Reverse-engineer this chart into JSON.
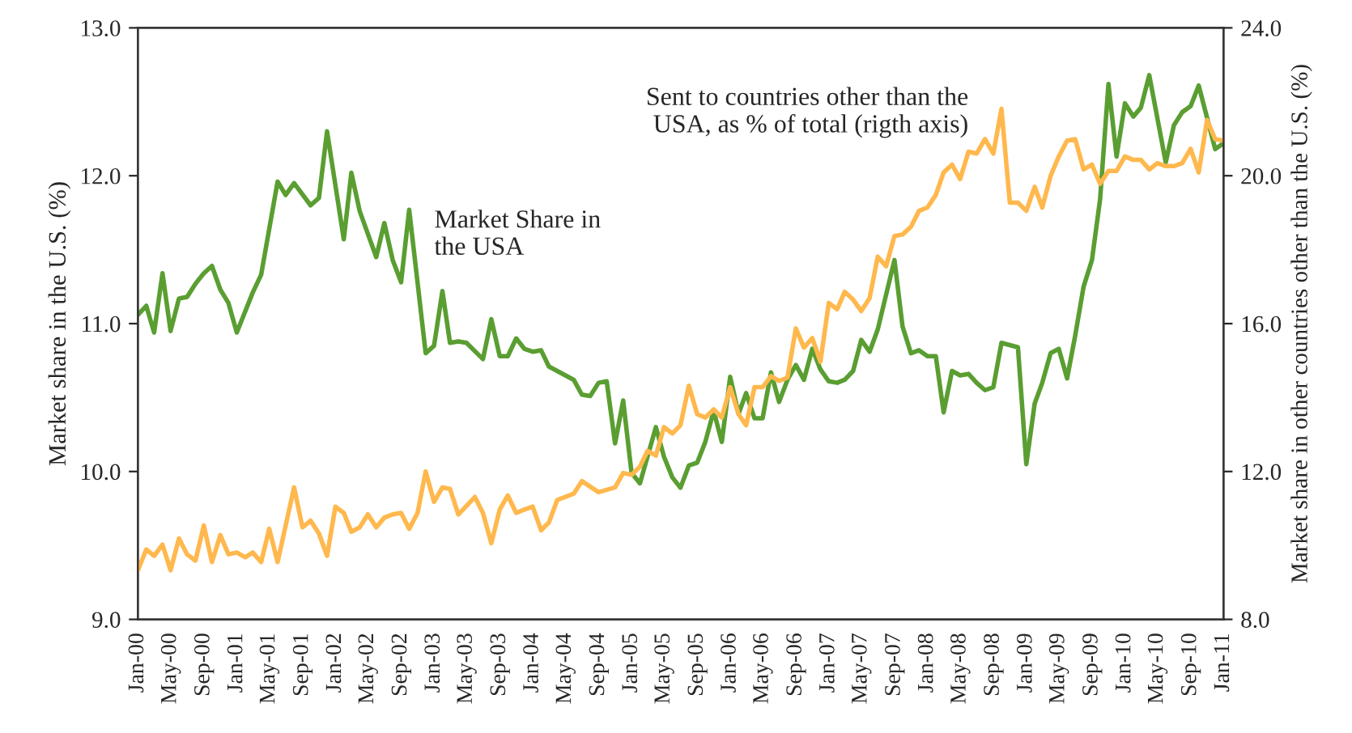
{
  "chart_data": {
    "type": "line",
    "ylabel": "Market share in the U.S. (%)",
    "y2label": "Market share in other countries other than the U.S. (%)",
    "annotations": [
      "Market Share in\nthe USA",
      "Sent to countries other than the\nUSA, as % of total (rigth axis)"
    ],
    "xlim": [
      "2000-01",
      "2011-01"
    ],
    "xticks": [
      {
        "value": "2000-01",
        "label": "Jan-00"
      },
      {
        "value": "2000-05",
        "label": "May-00"
      },
      {
        "value": "2000-09",
        "label": "Sep-00"
      },
      {
        "value": "2001-01",
        "label": "Jan-01"
      },
      {
        "value": "2001-05",
        "label": "May-01"
      },
      {
        "value": "2001-09",
        "label": "Sep-01"
      },
      {
        "value": "2002-01",
        "label": "Jan-02"
      },
      {
        "value": "2002-05",
        "label": "May-02"
      },
      {
        "value": "2002-09",
        "label": "Sep-02"
      },
      {
        "value": "2003-01",
        "label": "Jan-03"
      },
      {
        "value": "2003-05",
        "label": "May-03"
      },
      {
        "value": "2003-09",
        "label": "Sep-03"
      },
      {
        "value": "2004-01",
        "label": "Jan-04"
      },
      {
        "value": "2004-05",
        "label": "May-04"
      },
      {
        "value": "2004-09",
        "label": "Sep-04"
      },
      {
        "value": "2005-01",
        "label": "Jan-05"
      },
      {
        "value": "2005-05",
        "label": "May-05"
      },
      {
        "value": "2005-09",
        "label": "Sep-05"
      },
      {
        "value": "2006-01",
        "label": "Jan-06"
      },
      {
        "value": "2006-05",
        "label": "May-06"
      },
      {
        "value": "2006-09",
        "label": "Sep-06"
      },
      {
        "value": "2007-01",
        "label": "Jan-07"
      },
      {
        "value": "2007-05",
        "label": "May-07"
      },
      {
        "value": "2007-09",
        "label": "Sep-07"
      },
      {
        "value": "2008-01",
        "label": "Jan-08"
      },
      {
        "value": "2008-05",
        "label": "May-08"
      },
      {
        "value": "2008-09",
        "label": "Sep-08"
      },
      {
        "value": "2009-01",
        "label": "Jan-09"
      },
      {
        "value": "2009-05",
        "label": "May-09"
      },
      {
        "value": "2009-09",
        "label": "Sep-09"
      },
      {
        "value": "2010-01",
        "label": "Jan-10"
      },
      {
        "value": "2010-05",
        "label": "May-10"
      },
      {
        "value": "2010-09",
        "label": "Sep-10"
      },
      {
        "value": "2011-01",
        "label": "Jan-11"
      }
    ],
    "ylim": [
      9,
      13
    ],
    "yticks": [
      {
        "value": 9,
        "label": "9.0"
      },
      {
        "value": 10,
        "label": "10.0"
      },
      {
        "value": 11,
        "label": "11.0"
      },
      {
        "value": 12,
        "label": "12.0"
      },
      {
        "value": 13,
        "label": "13.0"
      }
    ],
    "y2lim": [
      8,
      24
    ],
    "y2ticks": [
      {
        "value": 8,
        "label": "8.0"
      },
      {
        "value": 12,
        "label": "12.0"
      },
      {
        "value": 16,
        "label": "16.0"
      },
      {
        "value": 20,
        "label": "20.0"
      },
      {
        "value": 24,
        "label": "24.0"
      }
    ],
    "grid": false,
    "legend": false,
    "series": [
      {
        "color": "#5a9e32",
        "x": [
          "2000-01",
          "2000-02",
          "2000-03",
          "2000-04",
          "2000-05",
          "2000-06",
          "2000-07",
          "2000-08",
          "2000-09",
          "2000-10",
          "2000-11",
          "2000-12",
          "2001-01",
          "2001-03",
          "2001-04",
          "2001-06",
          "2001-07",
          "2001-08",
          "2001-10",
          "2001-11",
          "2001-12",
          "2002-02",
          "2002-03",
          "2002-04",
          "2002-06",
          "2002-07",
          "2002-08",
          "2002-09",
          "2002-10",
          "2002-12",
          "2003-01",
          "2003-02",
          "2003-03",
          "2003-04",
          "2003-05",
          "2003-07",
          "2003-08",
          "2003-09",
          "2003-10",
          "2003-11",
          "2003-12",
          "2004-01",
          "2004-02",
          "2004-03",
          "2004-06",
          "2004-07",
          "2004-08",
          "2004-09",
          "2004-10",
          "2004-11",
          "2004-12",
          "2005-01",
          "2005-02",
          "2005-04",
          "2005-05",
          "2005-06",
          "2005-07",
          "2005-08",
          "2005-09",
          "2005-10",
          "2005-11",
          "2005-12",
          "2006-01",
          "2006-02",
          "2006-03",
          "2006-04",
          "2006-05",
          "2006-06",
          "2006-07",
          "2006-08",
          "2006-09",
          "2006-10",
          "2006-11",
          "2006-12",
          "2007-01",
          "2007-02",
          "2007-03",
          "2007-04",
          "2007-05",
          "2007-06",
          "2007-07",
          "2007-09",
          "2007-10",
          "2007-11",
          "2007-12",
          "2008-01",
          "2008-02",
          "2008-03",
          "2008-04",
          "2008-05",
          "2008-06",
          "2008-07",
          "2008-08",
          "2008-09",
          "2008-10",
          "2008-12",
          "2009-01",
          "2009-02",
          "2009-03",
          "2009-04",
          "2009-05",
          "2009-06",
          "2009-07",
          "2009-08",
          "2009-09",
          "2009-10",
          "2009-11",
          "2009-12",
          "2010-01",
          "2010-02",
          "2010-03",
          "2010-04",
          "2010-06",
          "2010-07",
          "2010-08",
          "2010-09",
          "2010-10",
          "2010-12",
          "2011-01"
        ],
        "values": [
          11.06,
          11.12,
          10.94,
          11.34,
          10.95,
          11.17,
          11.18,
          11.27,
          11.34,
          11.39,
          11.23,
          11.14,
          10.94,
          11.21,
          11.33,
          11.96,
          11.87,
          11.95,
          11.8,
          11.85,
          12.3,
          11.57,
          12.02,
          11.76,
          11.45,
          11.68,
          11.43,
          11.28,
          11.77,
          10.8,
          10.85,
          11.22,
          10.87,
          10.88,
          10.87,
          10.76,
          11.03,
          10.78,
          10.78,
          10.9,
          10.83,
          10.81,
          10.82,
          10.71,
          10.62,
          10.52,
          10.51,
          10.6,
          10.61,
          10.19,
          10.48,
          9.99,
          9.92,
          10.3,
          10.1,
          9.96,
          9.89,
          10.04,
          10.06,
          10.2,
          10.41,
          10.2,
          10.64,
          10.39,
          10.53,
          10.36,
          10.36,
          10.67,
          10.47,
          10.62,
          10.72,
          10.62,
          10.83,
          10.69,
          10.61,
          10.6,
          10.62,
          10.68,
          10.89,
          10.81,
          10.96,
          11.43,
          10.98,
          10.8,
          10.82,
          10.78,
          10.78,
          10.4,
          10.68,
          10.65,
          10.66,
          10.6,
          10.55,
          10.57,
          10.87,
          10.84,
          10.05,
          10.46,
          10.6,
          10.8,
          10.83,
          10.63,
          10.92,
          11.25,
          11.43,
          11.84,
          12.62,
          12.13,
          12.49,
          12.4,
          12.46,
          12.68,
          12.09,
          12.34,
          12.43,
          12.47,
          12.61,
          12.18,
          12.22
        ]
      },
      {
        "color": "#ffb84d",
        "axis": "y2",
        "x": [
          "2000-01",
          "2000-02",
          "2000-03",
          "2000-04",
          "2000-05",
          "2000-06",
          "2000-07",
          "2000-08",
          "2000-09",
          "2000-10",
          "2000-11",
          "2000-12",
          "2001-01",
          "2001-02",
          "2001-03",
          "2001-04",
          "2001-05",
          "2001-06",
          "2001-08",
          "2001-09",
          "2001-10",
          "2001-11",
          "2001-12",
          "2002-01",
          "2002-02",
          "2002-03",
          "2002-04",
          "2002-05",
          "2002-06",
          "2002-07",
          "2002-08",
          "2002-09",
          "2002-10",
          "2002-11",
          "2002-12",
          "2003-01",
          "2003-02",
          "2003-03",
          "2003-04",
          "2003-06",
          "2003-07",
          "2003-08",
          "2003-09",
          "2003-10",
          "2003-11",
          "2003-12",
          "2004-01",
          "2004-02",
          "2004-03",
          "2004-04",
          "2004-06",
          "2004-07",
          "2004-09",
          "2004-11",
          "2004-12",
          "2005-01",
          "2005-02",
          "2005-03",
          "2005-04",
          "2005-05",
          "2005-06",
          "2005-07",
          "2005-08",
          "2005-09",
          "2005-10",
          "2005-11",
          "2005-12",
          "2006-01",
          "2006-02",
          "2006-03",
          "2006-04",
          "2006-05",
          "2006-06",
          "2006-07",
          "2006-08",
          "2006-09",
          "2006-10",
          "2006-11",
          "2006-12",
          "2007-01",
          "2007-02",
          "2007-03",
          "2007-04",
          "2007-05",
          "2007-06",
          "2007-07",
          "2007-08",
          "2007-09",
          "2007-10",
          "2007-11",
          "2007-12",
          "2008-01",
          "2008-02",
          "2008-03",
          "2008-04",
          "2008-05",
          "2008-06",
          "2008-07",
          "2008-08",
          "2008-09",
          "2008-10",
          "2008-11",
          "2008-12",
          "2009-01",
          "2009-02",
          "2009-03",
          "2009-04",
          "2009-05",
          "2009-06",
          "2009-07",
          "2009-08",
          "2009-09",
          "2009-10",
          "2009-11",
          "2009-12",
          "2010-01",
          "2010-02",
          "2010-03",
          "2010-04",
          "2010-05",
          "2010-06",
          "2010-07",
          "2010-08",
          "2010-09",
          "2010-10",
          "2010-11",
          "2010-12",
          "2011-01"
        ],
        "values": [
          9.33,
          9.89,
          9.72,
          10.02,
          9.33,
          10.19,
          9.76,
          9.59,
          10.54,
          9.55,
          10.28,
          9.76,
          9.81,
          9.68,
          9.81,
          9.55,
          10.45,
          9.55,
          11.57,
          10.49,
          10.67,
          10.32,
          9.72,
          11.05,
          10.88,
          10.37,
          10.49,
          10.84,
          10.49,
          10.75,
          10.84,
          10.88,
          10.45,
          10.88,
          12.0,
          11.18,
          11.57,
          11.53,
          10.84,
          11.31,
          10.88,
          10.06,
          10.97,
          11.35,
          10.88,
          10.97,
          11.05,
          10.41,
          10.62,
          11.23,
          11.4,
          11.74,
          11.44,
          11.57,
          11.96,
          11.91,
          12.13,
          12.56,
          12.43,
          13.2,
          13.03,
          13.25,
          14.32,
          13.55,
          13.46,
          13.68,
          13.46,
          14.28,
          13.55,
          13.25,
          14.28,
          14.28,
          14.58,
          14.45,
          14.54,
          15.87,
          15.35,
          15.61,
          14.97,
          16.56,
          16.39,
          16.86,
          16.65,
          16.34,
          16.69,
          17.81,
          17.55,
          18.37,
          18.41,
          18.62,
          19.05,
          19.14,
          19.48,
          20.09,
          20.3,
          19.91,
          20.65,
          20.6,
          20.99,
          20.6,
          21.81,
          19.27,
          19.27,
          19.05,
          19.7,
          19.14,
          20.0,
          20.52,
          20.95,
          20.99,
          20.17,
          20.3,
          19.78,
          20.13,
          20.13,
          20.52,
          20.43,
          20.43,
          20.17,
          20.34,
          20.26,
          20.26,
          20.34,
          20.73,
          20.09,
          21.51,
          20.99,
          20.95
        ]
      }
    ]
  }
}
